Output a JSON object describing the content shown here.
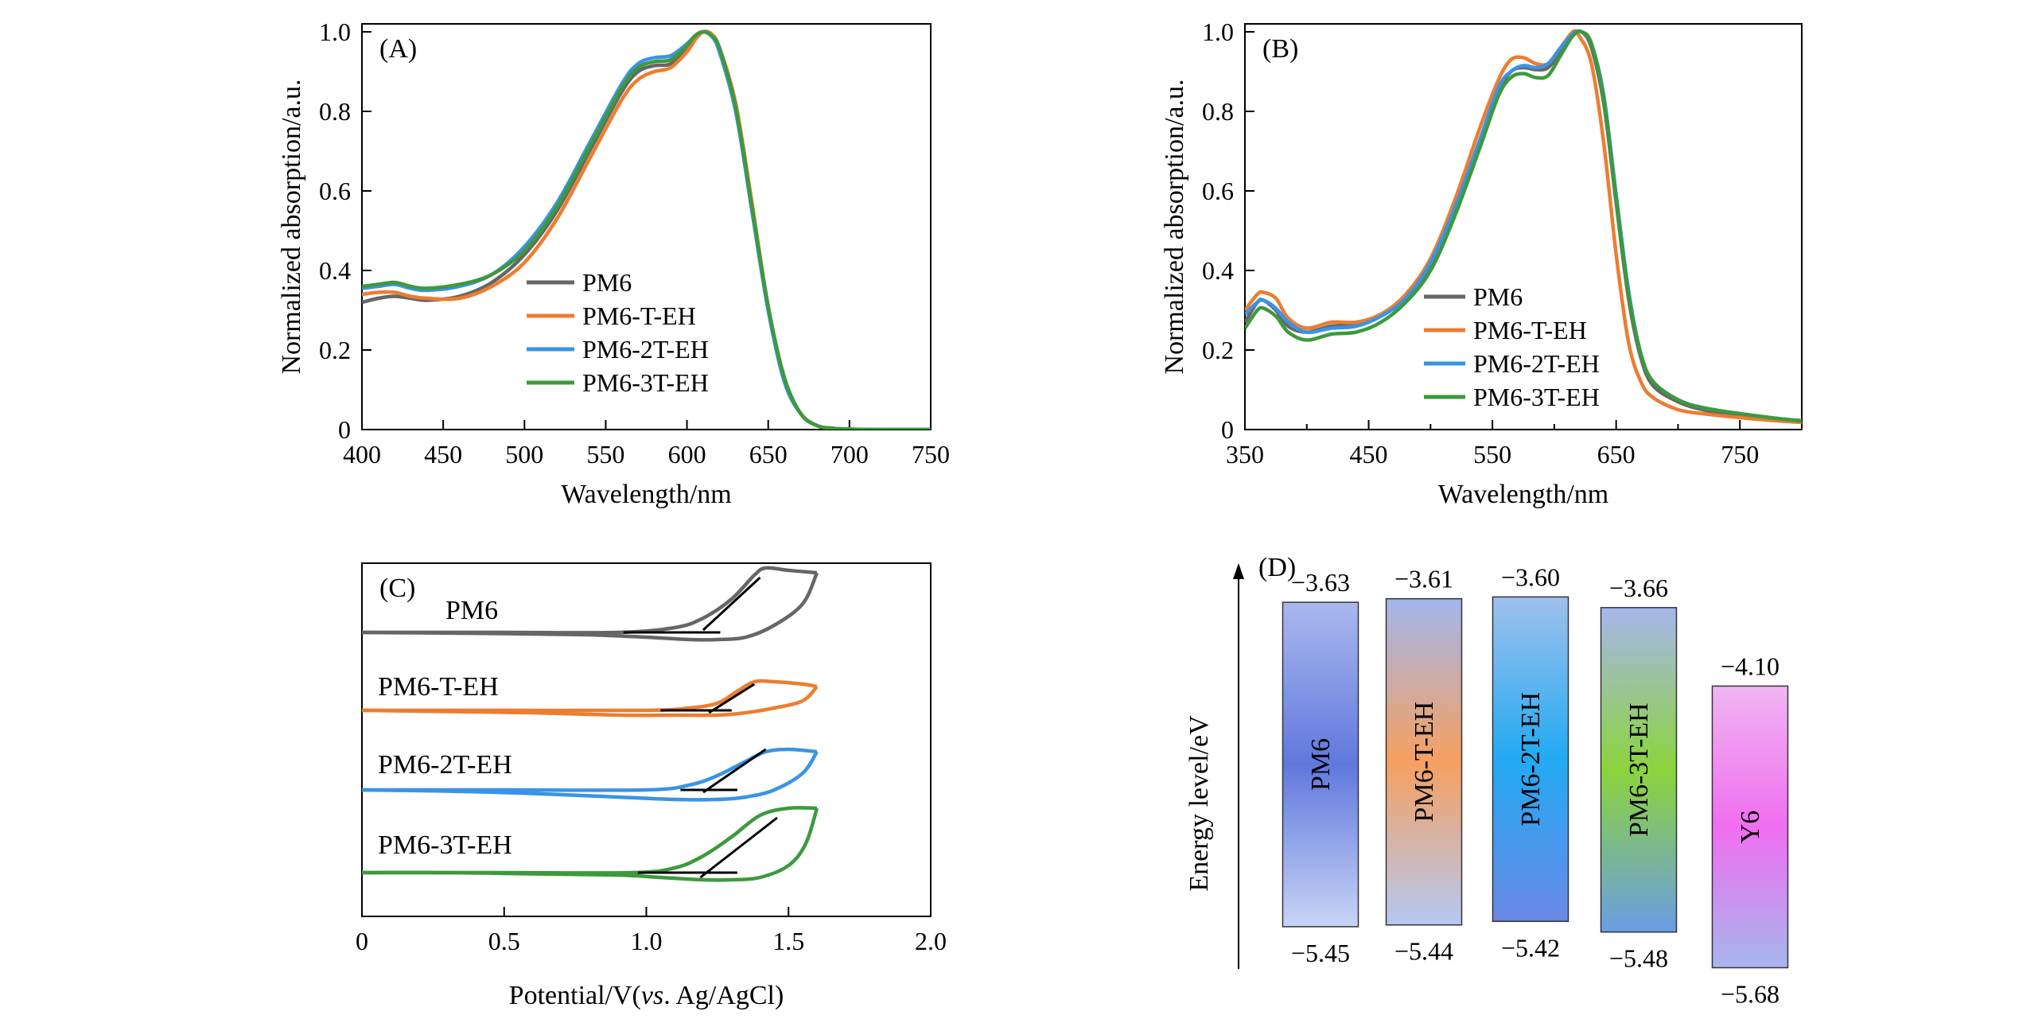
{
  "colors": {
    "PM6": "#666666",
    "PM6-T-EH": "#ed7d31",
    "PM6-2T-EH": "#3a93e6",
    "PM6-3T-EH": "#3c9a3c",
    "axis": "#000000"
  },
  "chart_data": [
    {
      "panel_label": "(A)",
      "type": "line",
      "xlabel": "Wavelength/nm",
      "ylabel": "Normalized absorption/a.u.",
      "xlim": [
        400,
        750
      ],
      "ylim": [
        0,
        1.02
      ],
      "xticks": [
        400,
        450,
        500,
        550,
        600,
        650,
        700,
        750
      ],
      "yticks": [
        0,
        0.2,
        0.4,
        0.6,
        0.8,
        1.0
      ],
      "ytick_labels": [
        "0",
        "0.2",
        "0.4",
        "0.6",
        "0.8",
        "1.0"
      ],
      "legend_position": "center",
      "series": [
        {
          "name": "PM6",
          "color": "#666666",
          "x": [
            400,
            410,
            420,
            430,
            440,
            460,
            480,
            500,
            520,
            540,
            560,
            570,
            580,
            590,
            600,
            605,
            610,
            615,
            620,
            630,
            640,
            650,
            660,
            670,
            680,
            690,
            700,
            720,
            750
          ],
          "y": [
            0.32,
            0.33,
            0.335,
            0.33,
            0.325,
            0.335,
            0.37,
            0.44,
            0.55,
            0.7,
            0.85,
            0.9,
            0.915,
            0.92,
            0.96,
            0.99,
            1.0,
            0.99,
            0.95,
            0.8,
            0.55,
            0.3,
            0.12,
            0.04,
            0.01,
            0.003,
            0.001,
            0.0,
            0.0
          ]
        },
        {
          "name": "PM6-T-EH",
          "color": "#ed7d31",
          "x": [
            400,
            410,
            420,
            430,
            440,
            460,
            480,
            500,
            520,
            540,
            560,
            570,
            580,
            590,
            600,
            605,
            610,
            615,
            620,
            630,
            640,
            650,
            660,
            670,
            680,
            690,
            700,
            720,
            750
          ],
          "y": [
            0.34,
            0.345,
            0.345,
            0.335,
            0.33,
            0.33,
            0.36,
            0.42,
            0.53,
            0.68,
            0.83,
            0.88,
            0.9,
            0.91,
            0.95,
            0.98,
            1.0,
            0.995,
            0.96,
            0.82,
            0.57,
            0.31,
            0.13,
            0.04,
            0.01,
            0.003,
            0.001,
            0.0,
            0.0
          ]
        },
        {
          "name": "PM6-2T-EH",
          "color": "#3a93e6",
          "x": [
            400,
            410,
            420,
            430,
            440,
            460,
            480,
            500,
            520,
            540,
            560,
            570,
            580,
            590,
            600,
            605,
            610,
            615,
            620,
            630,
            640,
            650,
            660,
            670,
            680,
            690,
            700,
            720,
            750
          ],
          "y": [
            0.355,
            0.36,
            0.365,
            0.355,
            0.35,
            0.36,
            0.39,
            0.46,
            0.57,
            0.72,
            0.87,
            0.92,
            0.935,
            0.94,
            0.97,
            0.99,
            1.0,
            0.99,
            0.95,
            0.8,
            0.55,
            0.3,
            0.12,
            0.04,
            0.01,
            0.003,
            0.001,
            0.0,
            0.0
          ]
        },
        {
          "name": "PM6-3T-EH",
          "color": "#3c9a3c",
          "x": [
            400,
            410,
            420,
            430,
            440,
            460,
            480,
            500,
            520,
            540,
            560,
            570,
            580,
            590,
            600,
            605,
            610,
            615,
            620,
            630,
            640,
            650,
            660,
            670,
            680,
            690,
            700,
            720,
            750
          ],
          "y": [
            0.36,
            0.365,
            0.37,
            0.36,
            0.355,
            0.365,
            0.39,
            0.45,
            0.56,
            0.71,
            0.86,
            0.91,
            0.925,
            0.93,
            0.965,
            0.99,
            1.0,
            0.99,
            0.96,
            0.81,
            0.56,
            0.31,
            0.13,
            0.04,
            0.01,
            0.003,
            0.001,
            0.0,
            0.0
          ]
        }
      ]
    },
    {
      "panel_label": "(B)",
      "type": "line",
      "xlabel": "Wavelength/nm",
      "ylabel": "Normalized absorption/a.u.",
      "xlim": [
        350,
        800
      ],
      "ylim": [
        0,
        1.02
      ],
      "xticks": [
        350,
        450,
        550,
        650,
        750
      ],
      "minor_xticks": [
        400,
        500,
        600,
        700,
        800
      ],
      "yticks": [
        0,
        0.2,
        0.4,
        0.6,
        0.8,
        1.0
      ],
      "ytick_labels": [
        "0",
        "0.2",
        "0.4",
        "0.6",
        "0.8",
        "1.0"
      ],
      "legend_position": "center-right",
      "series": [
        {
          "name": "PM6",
          "color": "#666666",
          "x": [
            350,
            360,
            365,
            375,
            385,
            400,
            420,
            440,
            460,
            480,
            500,
            520,
            540,
            555,
            565,
            575,
            585,
            595,
            605,
            615,
            622,
            630,
            640,
            650,
            660,
            670,
            680,
            700,
            720,
            750,
            780,
            800
          ],
          "y": [
            0.27,
            0.32,
            0.325,
            0.3,
            0.26,
            0.245,
            0.26,
            0.265,
            0.29,
            0.33,
            0.41,
            0.55,
            0.72,
            0.85,
            0.9,
            0.91,
            0.905,
            0.91,
            0.95,
            0.99,
            1.0,
            0.96,
            0.82,
            0.57,
            0.33,
            0.18,
            0.11,
            0.07,
            0.05,
            0.035,
            0.025,
            0.02
          ]
        },
        {
          "name": "PM6-T-EH",
          "color": "#ed7d31",
          "x": [
            350,
            360,
            365,
            375,
            385,
            400,
            420,
            440,
            460,
            480,
            500,
            520,
            540,
            555,
            565,
            575,
            585,
            595,
            605,
            615,
            620,
            630,
            640,
            650,
            660,
            670,
            680,
            700,
            720,
            750,
            780,
            800
          ],
          "y": [
            0.3,
            0.34,
            0.345,
            0.33,
            0.28,
            0.255,
            0.27,
            0.27,
            0.29,
            0.34,
            0.43,
            0.58,
            0.76,
            0.88,
            0.93,
            0.935,
            0.92,
            0.92,
            0.96,
            1.0,
            0.99,
            0.92,
            0.72,
            0.44,
            0.22,
            0.12,
            0.08,
            0.05,
            0.04,
            0.03,
            0.022,
            0.018
          ]
        },
        {
          "name": "PM6-2T-EH",
          "color": "#3a93e6",
          "x": [
            350,
            360,
            365,
            375,
            385,
            400,
            420,
            440,
            460,
            480,
            500,
            520,
            540,
            555,
            565,
            575,
            585,
            595,
            605,
            615,
            622,
            630,
            640,
            650,
            660,
            670,
            680,
            700,
            720,
            750,
            780,
            800
          ],
          "y": [
            0.29,
            0.32,
            0.325,
            0.305,
            0.27,
            0.245,
            0.255,
            0.26,
            0.285,
            0.33,
            0.42,
            0.56,
            0.73,
            0.86,
            0.9,
            0.915,
            0.91,
            0.92,
            0.96,
            0.995,
            1.0,
            0.97,
            0.84,
            0.59,
            0.35,
            0.19,
            0.12,
            0.075,
            0.055,
            0.04,
            0.028,
            0.022
          ]
        },
        {
          "name": "PM6-3T-EH",
          "color": "#3c9a3c",
          "x": [
            350,
            360,
            365,
            375,
            385,
            400,
            420,
            440,
            460,
            480,
            500,
            520,
            540,
            555,
            565,
            575,
            585,
            595,
            605,
            615,
            622,
            630,
            640,
            650,
            660,
            670,
            680,
            700,
            720,
            750,
            780,
            800
          ],
          "y": [
            0.255,
            0.3,
            0.305,
            0.285,
            0.245,
            0.225,
            0.24,
            0.245,
            0.27,
            0.32,
            0.4,
            0.54,
            0.71,
            0.84,
            0.885,
            0.895,
            0.885,
            0.89,
            0.94,
            0.99,
            1.0,
            0.97,
            0.83,
            0.58,
            0.34,
            0.19,
            0.12,
            0.075,
            0.055,
            0.04,
            0.028,
            0.022
          ]
        }
      ]
    },
    {
      "panel_label": "(C)",
      "type": "line",
      "xlabel_parts": [
        "Potential/V(",
        "vs",
        ". Ag/AgCl)"
      ],
      "xlim": [
        0,
        2.0
      ],
      "xticks": [
        0,
        0.5,
        1.0,
        1.5,
        2.0
      ],
      "xtick_labels": [
        "0",
        "0.5",
        "1.0",
        "1.5",
        "2.0"
      ],
      "trace_labels": [
        "PM6",
        "PM6-T-EH",
        "PM6-2T-EH",
        "PM6-3T-EH"
      ],
      "series": [
        {
          "name": "PM6",
          "color": "#666666",
          "offset": 3,
          "forward": {
            "x": [
              0,
              0.5,
              0.9,
              1.1,
              1.2,
              1.3,
              1.38,
              1.42,
              1.5,
              1.6
            ],
            "y": [
              0,
              0,
              0,
              0.02,
              0.06,
              0.14,
              0.24,
              0.27,
              0.26,
              0.25
            ]
          },
          "reverse": {
            "x": [
              1.6,
              1.55,
              1.45,
              1.35,
              1.25,
              1.15,
              1.0,
              0.8,
              0.5,
              0
            ],
            "y": [
              0.25,
              0.12,
              0.03,
              -0.02,
              -0.03,
              -0.03,
              -0.02,
              -0.01,
              -0.005,
              0
            ]
          },
          "tangents": [
            {
              "x": [
                0.92,
                1.26
              ],
              "y": [
                0.0,
                0.0
              ]
            },
            {
              "x": [
                1.2,
                1.4
              ],
              "y": [
                0.01,
                0.23
              ]
            }
          ]
        },
        {
          "name": "PM6-T-EH",
          "color": "#ed7d31",
          "offset": 2,
          "forward": {
            "x": [
              0,
              0.5,
              1.0,
              1.15,
              1.25,
              1.32,
              1.38,
              1.45,
              1.55,
              1.6
            ],
            "y": [
              0,
              0,
              0,
              0.01,
              0.03,
              0.08,
              0.12,
              0.12,
              0.11,
              0.1
            ]
          },
          "reverse": {
            "x": [
              1.6,
              1.55,
              1.45,
              1.35,
              1.25,
              1.1,
              0.9,
              0.6,
              0.3,
              0
            ],
            "y": [
              0.1,
              0.04,
              0.01,
              -0.01,
              -0.02,
              -0.02,
              -0.02,
              -0.01,
              -0.005,
              0
            ]
          },
          "tangents": [
            {
              "x": [
                1.05,
                1.3
              ],
              "y": [
                0.0,
                0.0
              ]
            },
            {
              "x": [
                1.22,
                1.38
              ],
              "y": [
                -0.01,
                0.11
              ]
            }
          ]
        },
        {
          "name": "PM6-2T-EH",
          "color": "#3a93e6",
          "offset": 1,
          "forward": {
            "x": [
              0,
              0.5,
              1.0,
              1.15,
              1.25,
              1.35,
              1.42,
              1.5,
              1.6
            ],
            "y": [
              0,
              0,
              0,
              0.02,
              0.06,
              0.12,
              0.16,
              0.17,
              0.16
            ]
          },
          "reverse": {
            "x": [
              1.6,
              1.55,
              1.45,
              1.35,
              1.25,
              1.1,
              0.9,
              0.6,
              0.3,
              0
            ],
            "y": [
              0.16,
              0.07,
              0.0,
              -0.03,
              -0.04,
              -0.04,
              -0.03,
              -0.015,
              -0.005,
              0
            ]
          },
          "tangents": [
            {
              "x": [
                1.12,
                1.32
              ],
              "y": [
                0.0,
                0.0
              ]
            },
            {
              "x": [
                1.2,
                1.42
              ],
              "y": [
                -0.01,
                0.17
              ]
            }
          ]
        },
        {
          "name": "PM6-3T-EH",
          "color": "#3c9a3c",
          "offset": 0,
          "forward": {
            "x": [
              0,
              0.5,
              0.95,
              1.1,
              1.2,
              1.3,
              1.4,
              1.5,
              1.6
            ],
            "y": [
              0,
              0,
              0,
              0.02,
              0.07,
              0.15,
              0.24,
              0.27,
              0.27
            ]
          },
          "reverse": {
            "x": [
              1.6,
              1.56,
              1.5,
              1.4,
              1.3,
              1.2,
              1.05,
              0.9,
              0.6,
              0.3,
              0
            ],
            "y": [
              0.27,
              0.12,
              0.03,
              -0.02,
              -0.03,
              -0.03,
              -0.02,
              -0.01,
              -0.005,
              0,
              0
            ]
          },
          "tangents": [
            {
              "x": [
                0.97,
                1.32
              ],
              "y": [
                0.0,
                0.0
              ]
            },
            {
              "x": [
                1.19,
                1.46
              ],
              "y": [
                -0.02,
                0.23
              ]
            }
          ]
        }
      ]
    },
    {
      "panel_label": "(D)",
      "type": "bar",
      "ylabel": "Energy level/eV",
      "ylim": [
        -5.7,
        -3.5
      ],
      "bars": [
        {
          "name": "PM6",
          "lumo": -3.63,
          "homo": -5.45,
          "lumo_label": "−3.63",
          "homo_label": "−5.45",
          "grad_top": "#aab8ee",
          "grad_mid": "#6078dd",
          "grad_bottom": "#c8d4f6"
        },
        {
          "name": "PM6-T-EH",
          "lumo": -3.61,
          "homo": -5.44,
          "lumo_label": "−3.61",
          "homo_label": "−5.44",
          "grad_top": "#a2b6ec",
          "grad_mid": "#f6a060",
          "grad_bottom": "#b4c8f2"
        },
        {
          "name": "PM6-2T-EH",
          "lumo": -3.6,
          "homo": -5.42,
          "lumo_label": "−3.60",
          "homo_label": "−5.42",
          "grad_top": "#a0c0ec",
          "grad_mid": "#22aaf2",
          "grad_bottom": "#6a88e6"
        },
        {
          "name": "PM6-3T-EH",
          "lumo": -3.66,
          "homo": -5.48,
          "lumo_label": "−3.66",
          "homo_label": "−5.48",
          "grad_top": "#a6b6ec",
          "grad_mid": "#8cd43c",
          "grad_bottom": "#6a9ce4"
        },
        {
          "name": "Y6",
          "lumo": -4.1,
          "homo": -5.68,
          "lumo_label": "−4.10",
          "homo_label": "−5.68",
          "grad_top": "#f0b6f2",
          "grad_mid": "#f06ef0",
          "grad_bottom": "#a6b6ee"
        }
      ]
    }
  ]
}
